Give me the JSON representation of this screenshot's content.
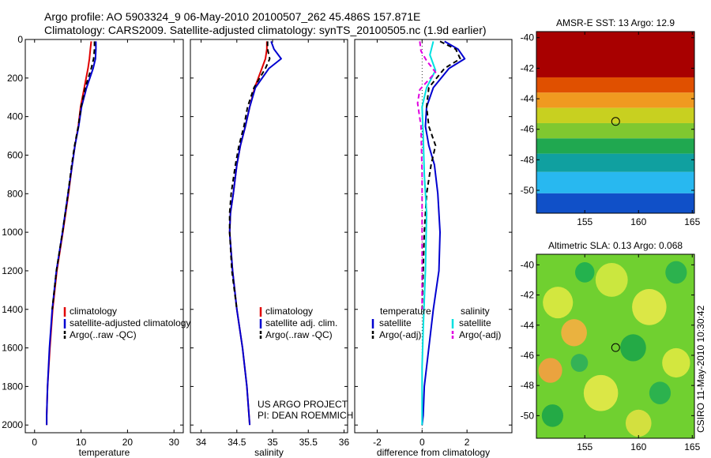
{
  "header": {
    "title_line1": "Argo profile: AO 5903324_9 06-May-2010 20100507_262 45.486S 157.871E",
    "title_line2": "Climatology: CARS2009. Satellite-adjusted climatology: synTS_20100505.nc (1.9d earlier)"
  },
  "credits": {
    "project_line1": "US ARGO PROJECT",
    "project_line2": "PI: DEAN ROEMMICH",
    "vertical_stamp": "CSIRO 11-May-2010 10:30:42"
  },
  "colors": {
    "climatology": "#e00000",
    "satellite": "#0000d0",
    "argo": "#000000",
    "sal_satellite": "#00e0e0",
    "sal_argo": "#e000e0"
  },
  "chart_data": [
    {
      "type": "line",
      "id": "temperature",
      "xlabel": "temperature",
      "ylabel": "",
      "xlim": [
        -2,
        32
      ],
      "ylim": [
        2040,
        0
      ],
      "y_inverted": true,
      "xticks": [
        0,
        10,
        20,
        30
      ],
      "yticks": [
        0,
        200,
        400,
        600,
        800,
        1000,
        1200,
        1400,
        1600,
        1800,
        2000
      ],
      "legend": [
        "climatology",
        "satellite-adjusted climatology",
        "Argo(..raw -QC)"
      ],
      "series": [
        {
          "name": "climatology",
          "color_key": "climatology",
          "dash": "solid",
          "x": [
            12.2,
            12.0,
            11.8,
            11.5,
            10.7,
            9.9,
            9.4,
            8.7,
            8.1,
            7.3,
            6.1,
            4.8,
            3.9,
            3.3,
            2.8,
            2.6,
            2.6
          ],
          "y": [
            10,
            50,
            100,
            150,
            250,
            350,
            450,
            550,
            650,
            800,
            1000,
            1200,
            1400,
            1600,
            1800,
            1950,
            2000
          ]
        },
        {
          "name": "satellite-adjusted climatology",
          "color_key": "satellite",
          "dash": "solid",
          "x": [
            13.2,
            13.2,
            13.1,
            12.6,
            11.2,
            10.1,
            9.5,
            8.7,
            8.1,
            7.2,
            6.0,
            4.7,
            3.8,
            3.2,
            2.8,
            2.6,
            2.6
          ],
          "y": [
            10,
            50,
            100,
            150,
            250,
            350,
            450,
            550,
            650,
            800,
            1000,
            1200,
            1400,
            1600,
            1800,
            1950,
            2000
          ]
        },
        {
          "name": "Argo(..raw -QC)",
          "color_key": "argo",
          "dash": "dashed",
          "x": [
            12.9,
            12.9,
            12.7,
            12.2,
            10.9,
            10.0,
            9.4,
            8.6,
            8.0,
            7.2,
            6.0,
            4.7,
            3.8
          ],
          "y": [
            10,
            50,
            100,
            150,
            250,
            350,
            450,
            550,
            650,
            800,
            1000,
            1200,
            1400
          ]
        }
      ]
    },
    {
      "type": "line",
      "id": "salinity",
      "xlabel": "salinity",
      "ylabel": "",
      "xlim": [
        33.85,
        36.05
      ],
      "ylim": [
        2040,
        0
      ],
      "y_inverted": true,
      "xticks": [
        34,
        34.5,
        35,
        35.5,
        36
      ],
      "yticks": [
        0,
        200,
        400,
        600,
        800,
        1000,
        1200,
        1400,
        1600,
        1800,
        2000
      ],
      "legend": [
        "climatology",
        "satellite adj. clim.",
        "Argo(..raw -QC)"
      ],
      "series": [
        {
          "name": "climatology",
          "color_key": "climatology",
          "dash": "solid",
          "x": [
            34.92,
            34.92,
            34.9,
            34.85,
            34.75,
            34.68,
            34.62,
            34.55,
            34.5,
            34.45,
            34.41,
            34.4,
            34.44,
            34.5,
            34.58,
            34.64,
            34.67,
            34.68
          ],
          "y": [
            10,
            50,
            100,
            150,
            250,
            350,
            450,
            550,
            650,
            800,
            900,
            1000,
            1200,
            1400,
            1600,
            1800,
            1950,
            2000
          ]
        },
        {
          "name": "satellite adj. clim.",
          "color_key": "satellite",
          "dash": "solid",
          "x": [
            34.98,
            35.02,
            35.12,
            34.95,
            34.76,
            34.68,
            34.62,
            34.55,
            34.5,
            34.45,
            34.41,
            34.4,
            34.44,
            34.5,
            34.58,
            34.64,
            34.67,
            34.68
          ],
          "y": [
            10,
            50,
            100,
            150,
            250,
            350,
            450,
            550,
            650,
            800,
            900,
            1000,
            1200,
            1400,
            1600,
            1800,
            1950,
            2000
          ]
        },
        {
          "name": "Argo(..raw -QC)",
          "color_key": "argo",
          "dash": "dashed",
          "x": [
            34.93,
            34.93,
            34.96,
            34.9,
            34.74,
            34.65,
            34.6,
            34.53,
            34.48,
            34.42,
            34.4,
            34.4,
            34.43,
            34.5
          ],
          "y": [
            10,
            50,
            100,
            150,
            250,
            350,
            450,
            550,
            650,
            800,
            900,
            1000,
            1200,
            1400
          ]
        }
      ]
    },
    {
      "type": "line",
      "id": "difference",
      "xlabel": "difference from climatology",
      "ylabel": "",
      "xlim": [
        -3,
        4
      ],
      "ylim": [
        2040,
        0
      ],
      "y_inverted": true,
      "xticks": [
        -2,
        0,
        2
      ],
      "yticks": [
        0,
        200,
        400,
        600,
        800,
        1000,
        1200,
        1400,
        1600,
        1800,
        2000
      ],
      "legend_group_titles": [
        "temperature",
        "salinity"
      ],
      "legend": [
        "satellite",
        "Argo(-adj)",
        "satellite",
        "Argo(-adj)"
      ],
      "series": [
        {
          "name": "satellite",
          "group": "temperature",
          "color_key": "satellite",
          "dash": "solid",
          "x": [
            1.0,
            1.6,
            1.9,
            1.2,
            0.5,
            0.2,
            0.15,
            0.3,
            0.55,
            0.7,
            0.8,
            0.75,
            0.5,
            0.3,
            0.1,
            0.05,
            0
          ],
          "y": [
            10,
            50,
            100,
            150,
            250,
            350,
            450,
            550,
            650,
            800,
            1000,
            1200,
            1400,
            1600,
            1800,
            1950,
            2000
          ]
        },
        {
          "name": "Argo(-adj)",
          "group": "temperature",
          "color_key": "argo",
          "dash": "dashed",
          "x": [
            0.8,
            1.5,
            1.7,
            1.0,
            0.3,
            0.2,
            0.3,
            0.6,
            0.4,
            0.2,
            0.1,
            0.05,
            0
          ],
          "y": [
            10,
            50,
            100,
            150,
            250,
            350,
            450,
            550,
            650,
            800,
            1000,
            1200,
            1400
          ]
        },
        {
          "name": "satellite",
          "group": "salinity",
          "color_key": "sal_satellite",
          "dash": "solid",
          "x": [
            0.5,
            0.35,
            0.6,
            0.2,
            0.0,
            0.05,
            0.1,
            0.2,
            0.15,
            0.05,
            0,
            0,
            0
          ],
          "y": [
            10,
            80,
            160,
            250,
            350,
            500,
            700,
            900,
            1200,
            1500,
            1700,
            1900,
            2000
          ]
        },
        {
          "name": "Argo(-adj)",
          "group": "salinity",
          "color_key": "sal_argo",
          "dash": "dashed",
          "x": [
            -0.1,
            -0.05,
            0.2,
            0.6,
            -0.1,
            -0.2,
            -0.05,
            0.0,
            0.0,
            0.0
          ],
          "y": [
            10,
            60,
            110,
            170,
            260,
            330,
            450,
            700,
            1000,
            1400
          ]
        }
      ]
    },
    {
      "type": "heatmap",
      "id": "sst",
      "title": "AMSR-E SST: 13 Argo: 12.9",
      "xlim": [
        150.5,
        165.2
      ],
      "ylim": [
        -51.5,
        -39.6
      ],
      "xticks": [
        155,
        160,
        165
      ],
      "yticks": [
        -40,
        -42,
        -44,
        -46,
        -48,
        -50
      ],
      "marker": {
        "x": 157.871,
        "y": -45.486
      },
      "bands": [
        {
          "y_top": -39.6,
          "y_bottom": -42.6,
          "color": "#a80000"
        },
        {
          "y_top": -42.6,
          "y_bottom": -43.6,
          "color": "#e05000"
        },
        {
          "y_top": -43.6,
          "y_bottom": -44.6,
          "color": "#f09a20"
        },
        {
          "y_top": -44.6,
          "y_bottom": -45.6,
          "color": "#c8d020"
        },
        {
          "y_top": -45.6,
          "y_bottom": -46.6,
          "color": "#80c830"
        },
        {
          "y_top": -46.6,
          "y_bottom": -47.6,
          "color": "#20a850"
        },
        {
          "y_top": -47.6,
          "y_bottom": -48.8,
          "color": "#10a0a0"
        },
        {
          "y_top": -48.8,
          "y_bottom": -50.2,
          "color": "#28b8f0"
        },
        {
          "y_top": -50.2,
          "y_bottom": -51.5,
          "color": "#1050c8"
        }
      ]
    },
    {
      "type": "heatmap",
      "id": "sla",
      "title": "Altimetric SLA: 0.13 Argo: 0.068",
      "xlim": [
        150.5,
        165.2
      ],
      "ylim": [
        -51.5,
        -39.3
      ],
      "xticks": [
        155,
        160,
        165
      ],
      "yticks": [
        -40,
        -42,
        -44,
        -46,
        -48,
        -50
      ],
      "marker": {
        "x": 157.871,
        "y": -45.486
      },
      "base_color": "#70d030",
      "blobs": [
        {
          "x": 152.5,
          "y": -42.5,
          "r": 1.4,
          "color": "#d8e840"
        },
        {
          "x": 154.0,
          "y": -44.5,
          "r": 1.2,
          "color": "#f0b040"
        },
        {
          "x": 151.8,
          "y": -47.0,
          "r": 1.1,
          "color": "#f0a040"
        },
        {
          "x": 157.5,
          "y": -41.0,
          "r": 1.5,
          "color": "#d0e840"
        },
        {
          "x": 161.0,
          "y": -42.8,
          "r": 1.6,
          "color": "#e0e848"
        },
        {
          "x": 163.5,
          "y": -46.5,
          "r": 1.3,
          "color": "#d8e840"
        },
        {
          "x": 156.5,
          "y": -48.5,
          "r": 1.6,
          "color": "#e0e848"
        },
        {
          "x": 160.0,
          "y": -50.5,
          "r": 1.2,
          "color": "#d8e040"
        },
        {
          "x": 155.0,
          "y": -40.5,
          "r": 0.9,
          "color": "#20b050"
        },
        {
          "x": 159.5,
          "y": -45.5,
          "r": 1.2,
          "color": "#20a848"
        },
        {
          "x": 163.5,
          "y": -40.5,
          "r": 1.0,
          "color": "#28b050"
        },
        {
          "x": 152.0,
          "y": -50.0,
          "r": 1.0,
          "color": "#20a848"
        },
        {
          "x": 162.0,
          "y": -48.5,
          "r": 1.0,
          "color": "#28b050"
        },
        {
          "x": 154.5,
          "y": -46.5,
          "r": 0.8,
          "color": "#30b058"
        }
      ]
    }
  ]
}
